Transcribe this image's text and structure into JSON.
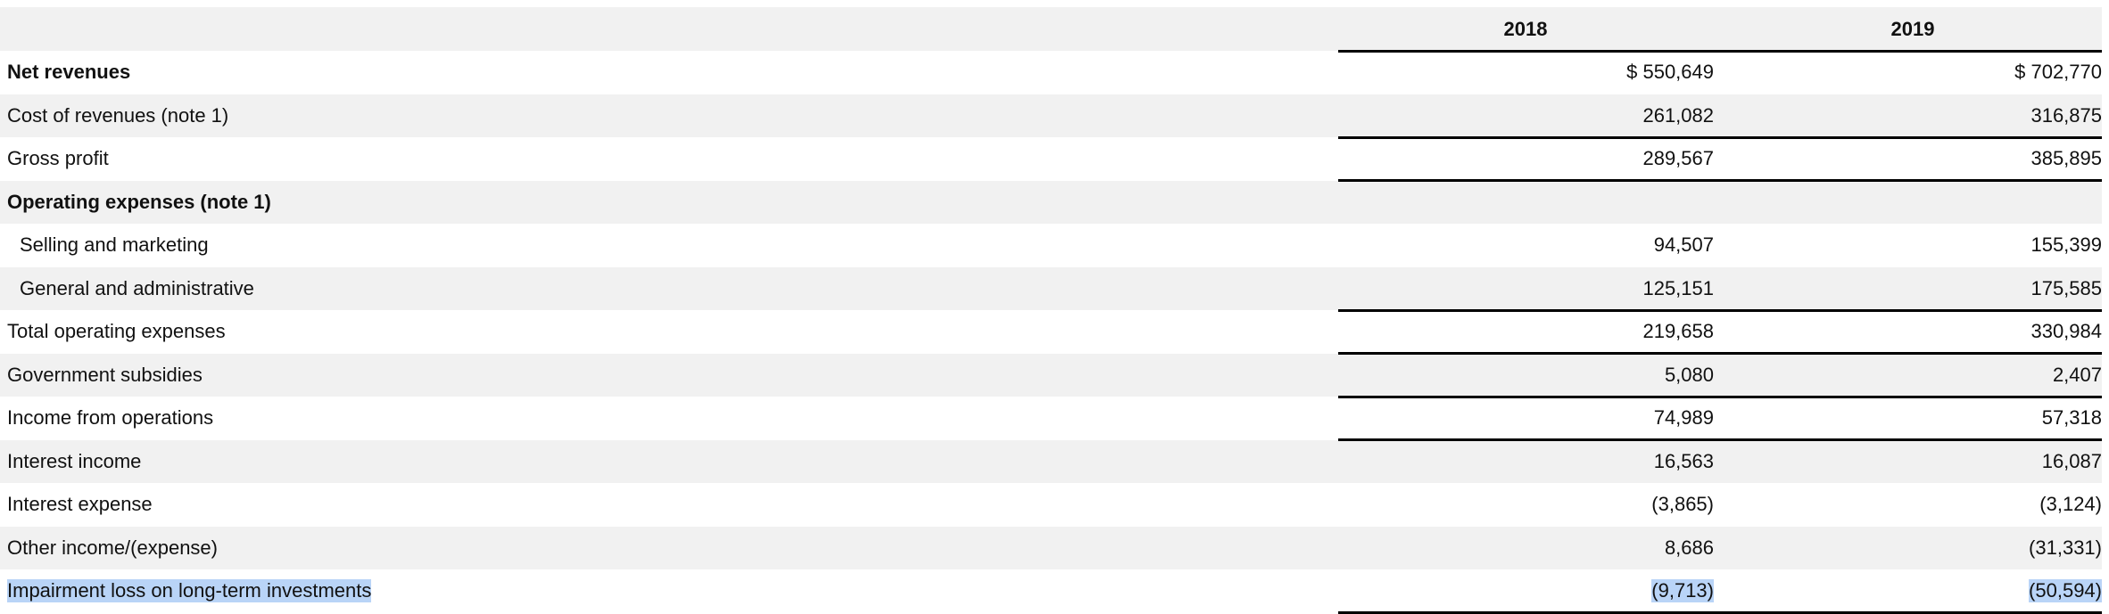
{
  "header": {
    "columns": [
      "2018",
      "2019"
    ]
  },
  "rows": [
    {
      "label": "Net revenues",
      "v2018": "$ 550,649",
      "v2019": "$ 702,770",
      "bold": true
    },
    {
      "label": "Cost of revenues (note 1)",
      "v2018": "261,082",
      "v2019": "316,875"
    },
    {
      "label": "Gross profit",
      "v2018": "289,567",
      "v2019": "385,895"
    },
    {
      "label": "Operating expenses (note 1)",
      "v2018": "",
      "v2019": "",
      "bold": true
    },
    {
      "label": "Selling and marketing",
      "v2018": "94,507",
      "v2019": "155,399",
      "indent": true
    },
    {
      "label": "General and administrative",
      "v2018": "125,151",
      "v2019": "175,585",
      "indent": true
    },
    {
      "label": "Total operating expenses",
      "v2018": "219,658",
      "v2019": "330,984"
    },
    {
      "label": "Government subsidies",
      "v2018": "5,080",
      "v2019": "2,407"
    },
    {
      "label": "Income from operations",
      "v2018": "74,989",
      "v2019": "57,318"
    },
    {
      "label": "Interest income",
      "v2018": "16,563",
      "v2019": "16,087"
    },
    {
      "label": "Interest expense",
      "v2018": "(3,865)",
      "v2019": "(3,124)"
    },
    {
      "label": "Other income/(expense)",
      "v2018": "8,686",
      "v2019": "(31,331)"
    },
    {
      "label": "Impairment loss on long-term investments",
      "v2018": "(9,713)",
      "v2019": "(50,594)",
      "selected": true
    }
  ],
  "colors": {
    "stripe": "#f1f1f1",
    "selection": "#b9d4f7",
    "rule": "#000000"
  }
}
